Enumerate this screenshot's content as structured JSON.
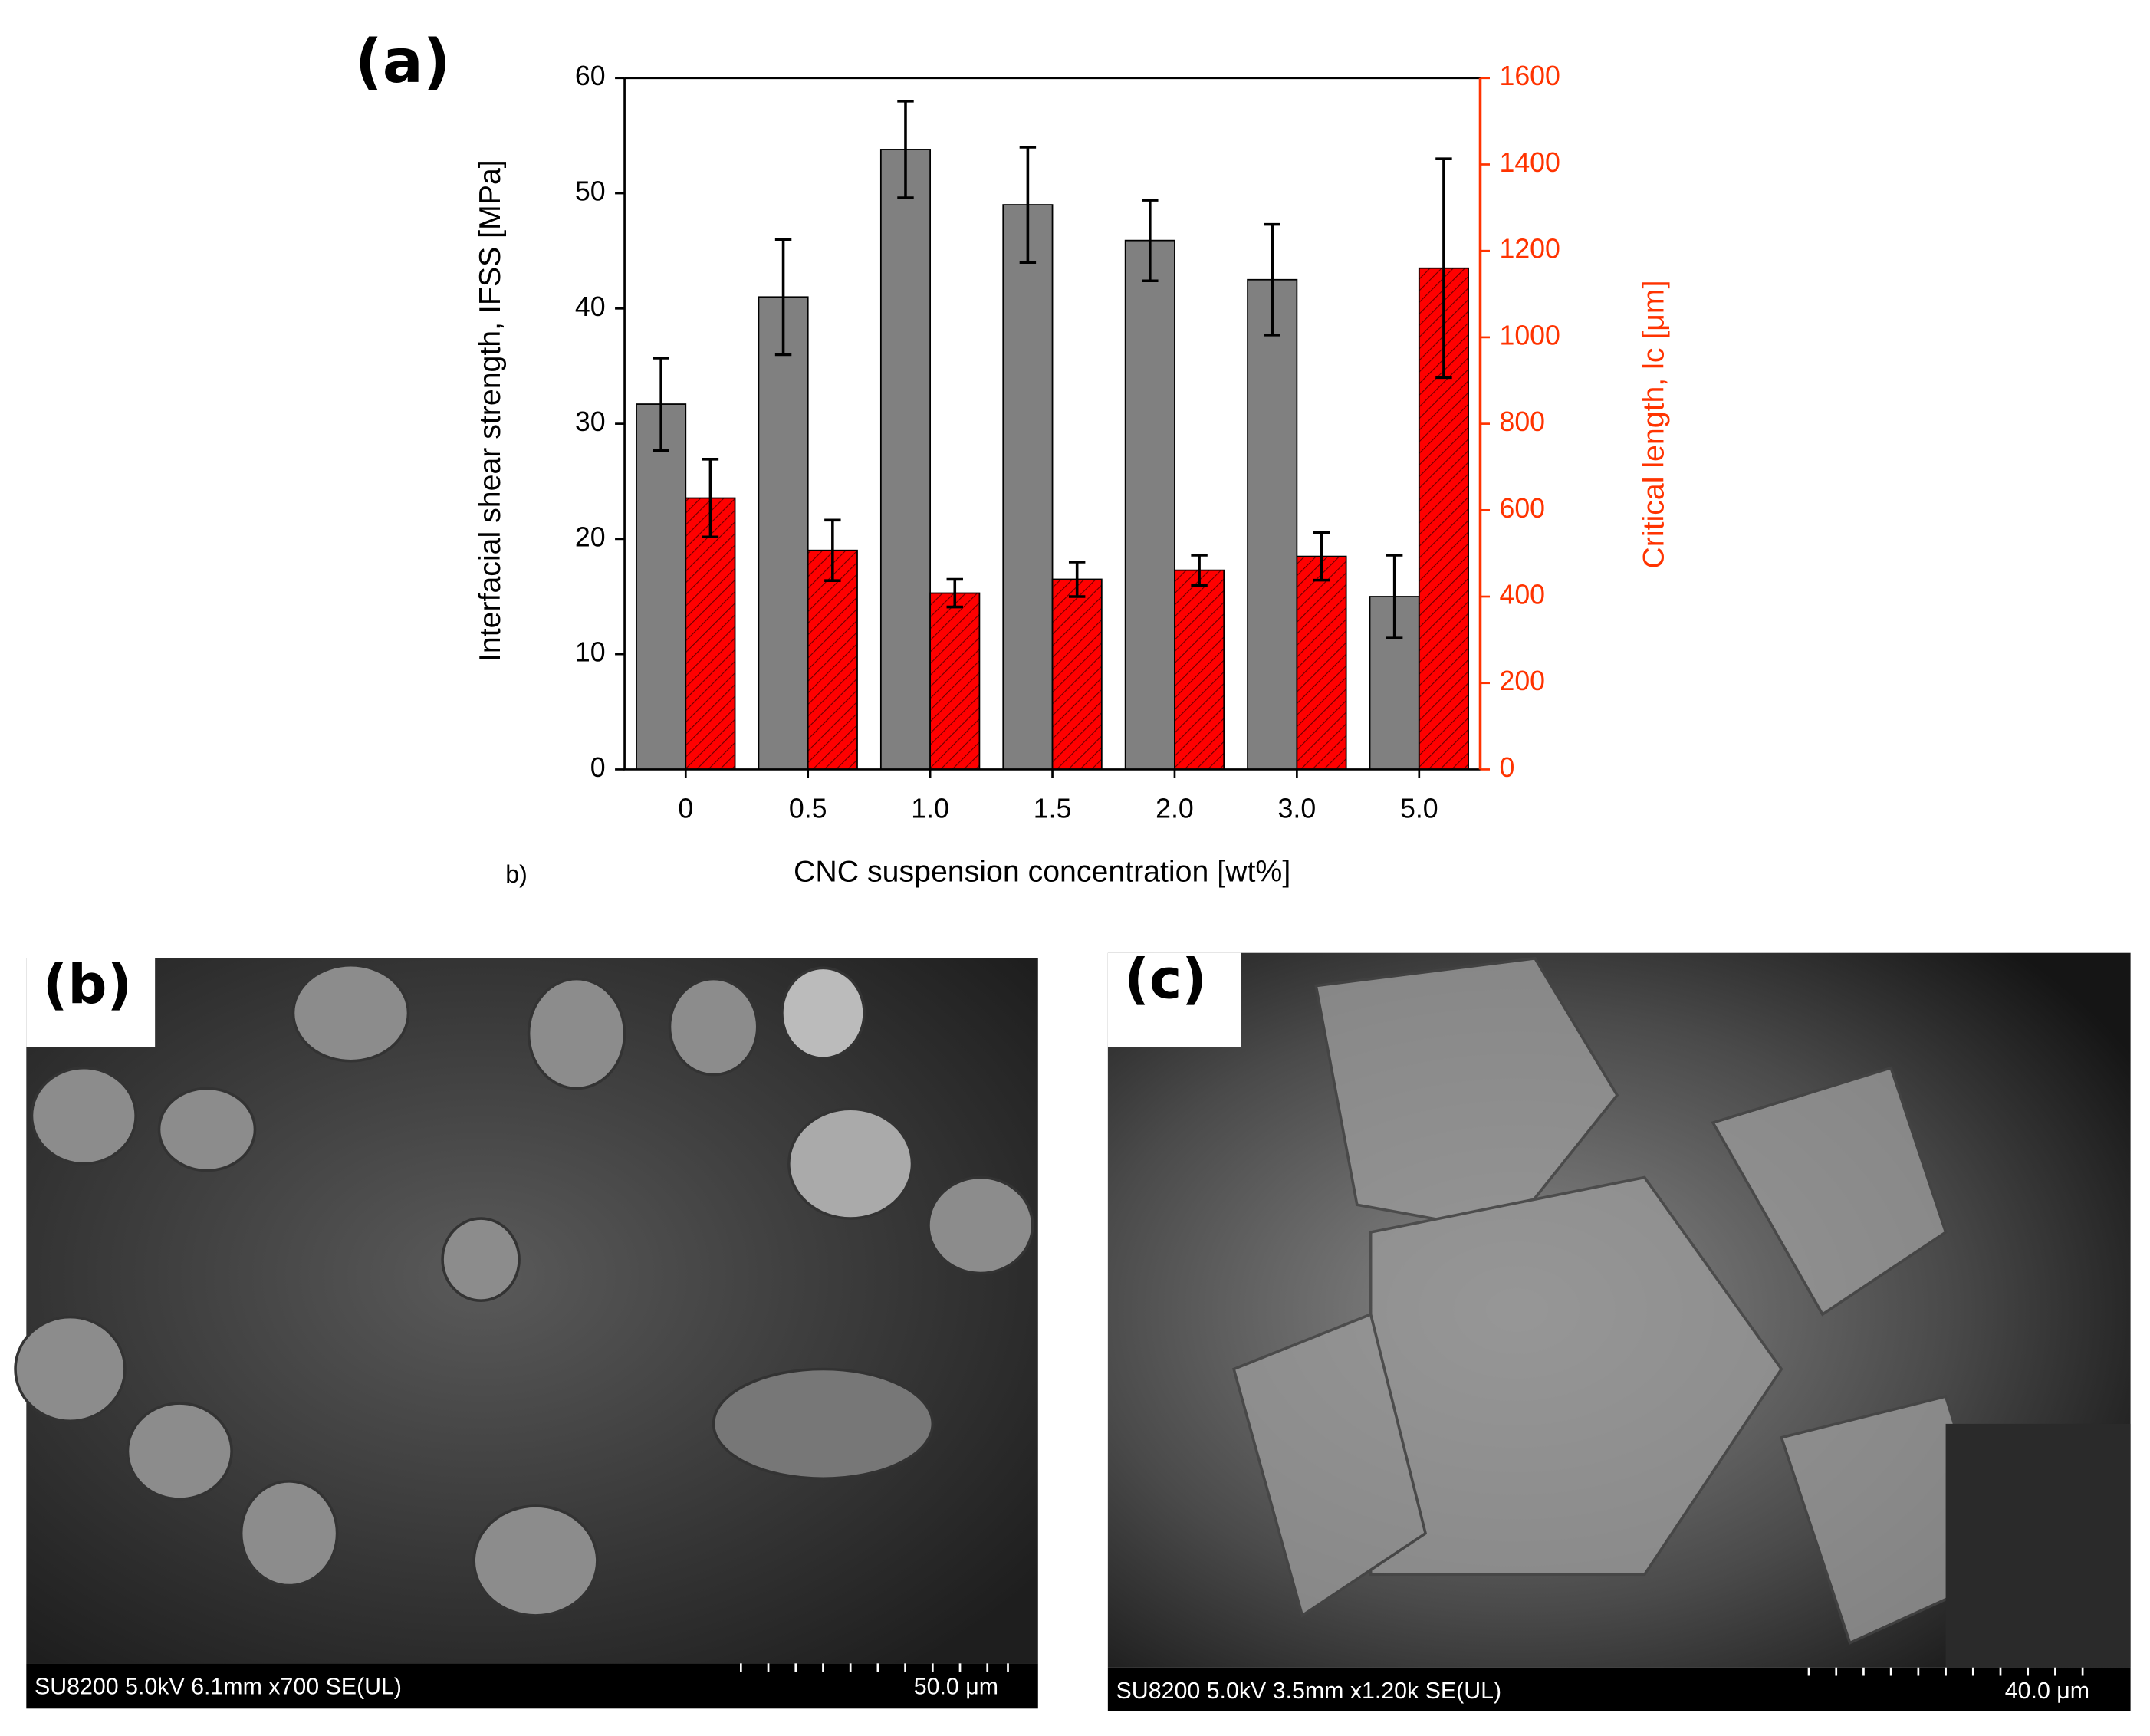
{
  "chart_data": {
    "type": "bar",
    "title": "(a)",
    "annotation": "b)",
    "xlabel": "CNC suspension concentration [wt%]",
    "ylabel": "Interfacial shear strength, IFSS [MPa]",
    "y2label": "Critical length, lc [μm]",
    "categories": [
      "0",
      "0.5",
      "1.0",
      "1.5",
      "2.0",
      "3.0",
      "5.0"
    ],
    "series": [
      {
        "color": "#808080",
        "values": [
          31.7,
          41,
          53.8,
          49,
          45.9,
          42.5,
          15
        ],
        "errors": [
          4,
          5,
          4.2,
          5,
          3.5,
          4.8,
          3.6
        ]
      },
      {
        "color": "#ff0000",
        "axis": "y2",
        "values": [
          628,
          507,
          408,
          440,
          461,
          493,
          1160
        ],
        "errors": [
          90,
          70,
          32,
          40,
          35,
          55,
          253
        ]
      }
    ],
    "ylim": [
      0,
      60
    ],
    "yticks": [
      0,
      10,
      20,
      30,
      40,
      50,
      60
    ],
    "y2lim": [
      0,
      1600
    ],
    "y2ticks": [
      0,
      200,
      400,
      600,
      800,
      1000,
      1200,
      1400,
      1600
    ],
    "y2color": "#ff3300"
  },
  "panels": [
    {
      "label": "(b)",
      "info": "SU8200 5.0kV 6.1mm x700 SE(UL)",
      "scale": "50.0 μm"
    },
    {
      "label": "(c)",
      "info": "SU8200 5.0kV 3.5mm x1.20k SE(UL)",
      "scale": "40.0 μm"
    }
  ]
}
